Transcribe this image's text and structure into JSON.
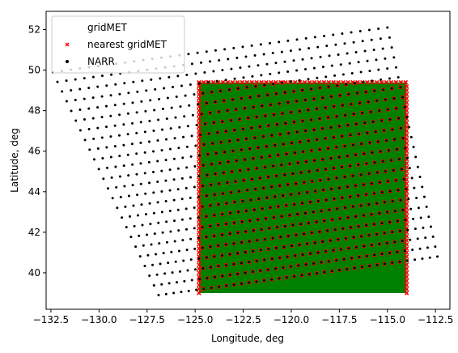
{
  "chart_data": {
    "type": "scatter",
    "title": "",
    "xlabel": "Longitude, deg",
    "ylabel": "Latitude, deg",
    "xlim": [
      -132.75,
      -111.75
    ],
    "ylim": [
      38.2,
      52.9
    ],
    "xticks": [
      -132.5,
      -130.0,
      -127.5,
      -125.0,
      -122.5,
      -120.0,
      -117.5,
      -115.0,
      -112.5
    ],
    "xtick_labels": [
      "−132.5",
      "−130.0",
      "−127.5",
      "−125.0",
      "−122.5",
      "−120.0",
      "−117.5",
      "−115.0",
      "−112.5"
    ],
    "yticks": [
      40,
      42,
      44,
      46,
      48,
      50,
      52
    ],
    "ytick_labels": [
      "40",
      "42",
      "44",
      "46",
      "48",
      "50",
      "52"
    ],
    "grid": false,
    "legend_position": "top-left",
    "series": [
      {
        "name": "gridMET",
        "marker": "dense-fill",
        "color": "#008000",
        "region": {
          "lon": [
            -124.8,
            -114.0
          ],
          "lat": [
            39.0,
            49.4
          ]
        }
      },
      {
        "name": "nearest gridMET",
        "marker": "x",
        "color": "#ff0000",
        "region": {
          "lon": [
            -124.8,
            -114.0
          ],
          "lat": [
            39.0,
            49.4
          ]
        }
      },
      {
        "name": "NARR",
        "marker": "dot",
        "color": "#000000",
        "grid": {
          "corners": {
            "top_left": [
              -132.4,
              49.9
            ],
            "top_right": [
              -115.0,
              52.1
            ],
            "bottom_left": [
              -126.9,
              38.9
            ],
            "bottom_right": [
              -112.4,
              40.8
            ]
          },
          "columns": 38,
          "rows": 24
        }
      }
    ],
    "colors": {
      "gridmet": "#008000",
      "nearest": "#ff0000",
      "narr": "#000000",
      "axes": "#000000"
    }
  }
}
